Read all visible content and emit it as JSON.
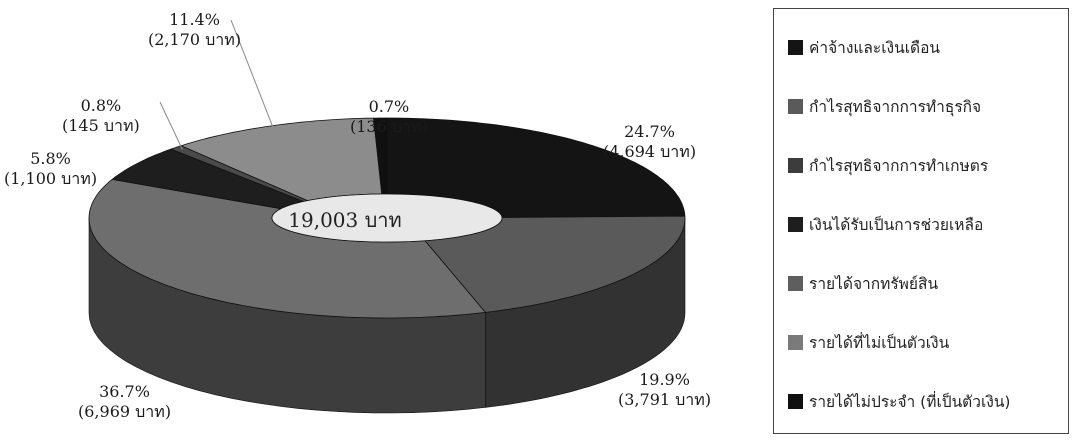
{
  "chart_data": {
    "type": "pie",
    "center_label": "19,003 บาท",
    "slices": [
      {
        "name": "ค่าจ้างและเงินเดือน",
        "percent_label": "24.7%",
        "amount_label": "(4,694 บาท)",
        "value": 4694,
        "color": "#141414"
      },
      {
        "name": "กำไรสุทธิจากการทำธุรกิจ",
        "percent_label": "19.9%",
        "amount_label": "(3,791 บาท)",
        "value": 3791,
        "color": "#5a5a5a"
      },
      {
        "name": "กำไรสุทธิจากการทำเกษตร",
        "percent_label": "36.7%",
        "amount_label": "(6,969 บาท)",
        "value": 6969,
        "color": "#6e6e6e"
      },
      {
        "name": "เงินได้รับเป็นการช่วยเหลือ",
        "percent_label": "5.8%",
        "amount_label": "(1,100 บาท)",
        "value": 1100,
        "color": "#1e1e1e"
      },
      {
        "name": "รายได้จากทรัพย์สิน",
        "percent_label": "0.8%",
        "amount_label": "(145 บาท)",
        "value": 145,
        "color": "#4a4a4a"
      },
      {
        "name": "รายได้ที่ไม่เป็นตัวเงิน",
        "percent_label": "11.4%",
        "amount_label": "(2,170 บาท)",
        "value": 2170,
        "color": "#8c8c8c"
      },
      {
        "name": "รายได้ไม่ประจำ (ที่เป็นตัวเงิน)",
        "percent_label": "0.7%",
        "amount_label": "(136 บาท)",
        "value": 136,
        "color": "#101010"
      }
    ],
    "legend_placement": "right"
  }
}
